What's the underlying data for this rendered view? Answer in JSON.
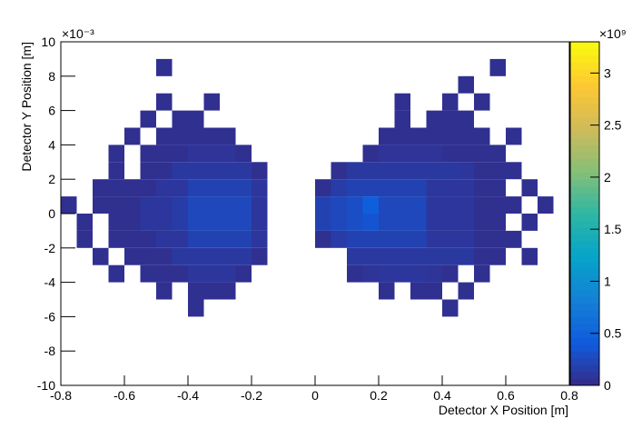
{
  "chart_data": {
    "type": "heatmap",
    "x_label": "Detector X Position [m]",
    "y_label": "Detector Y Position [m]",
    "y_multiplier": "×10⁻³",
    "z_multiplier": "×10⁹",
    "xlim": [
      -0.8,
      0.8
    ],
    "xticks": [
      -0.8,
      -0.6,
      -0.4,
      -0.2,
      0,
      0.2,
      0.4,
      0.6,
      0.8
    ],
    "ylim": [
      -10,
      10
    ],
    "yticks": [
      -10,
      -8,
      -6,
      -4,
      -2,
      0,
      2,
      4,
      6,
      8,
      10
    ],
    "zlim": [
      0,
      3.3
    ],
    "zticks": [
      0,
      0.5,
      1,
      1.5,
      2,
      2.5,
      3
    ],
    "colormap": [
      "#352a87",
      "#0f5cdd",
      "#1481d6",
      "#06a4ca",
      "#2eb7a4",
      "#87bf77",
      "#d1bb59",
      "#fec832",
      "#f9fb0e"
    ],
    "xbins": [
      -0.8,
      -0.75,
      -0.7,
      -0.65,
      -0.6,
      -0.55,
      -0.5,
      -0.45,
      -0.4,
      -0.35,
      -0.3,
      -0.25,
      -0.2,
      -0.15,
      -0.1,
      -0.05,
      0,
      0.05,
      0.1,
      0.15,
      0.2,
      0.25,
      0.3,
      0.35,
      0.4,
      0.45,
      0.5,
      0.55,
      0.6,
      0.65,
      0.7,
      0.75,
      0.8
    ],
    "ybins": [
      -10,
      -9,
      -8,
      -7,
      -6,
      -5,
      -4,
      -3,
      -2,
      -1,
      0,
      1,
      2,
      3,
      4,
      5,
      6,
      7,
      8,
      9,
      10
    ],
    "z": [
      [
        null,
        null,
        null,
        null,
        null,
        null,
        null,
        null,
        null,
        null,
        null,
        null,
        null,
        null,
        null,
        null,
        null,
        null,
        null,
        null,
        null,
        null,
        null,
        null,
        null,
        null,
        null,
        null,
        null,
        null,
        null,
        null
      ],
      [
        null,
        null,
        null,
        null,
        null,
        null,
        null,
        null,
        null,
        null,
        null,
        null,
        null,
        null,
        null,
        null,
        null,
        null,
        null,
        null,
        null,
        null,
        null,
        null,
        null,
        null,
        null,
        null,
        null,
        null,
        null,
        null
      ],
      [
        null,
        null,
        null,
        null,
        null,
        null,
        null,
        null,
        null,
        null,
        null,
        null,
        null,
        null,
        null,
        null,
        null,
        null,
        null,
        null,
        null,
        null,
        null,
        null,
        null,
        null,
        null,
        null,
        null,
        null,
        null,
        null
      ],
      [
        null,
        null,
        null,
        null,
        null,
        null,
        null,
        null,
        null,
        null,
        null,
        null,
        null,
        null,
        null,
        null,
        null,
        null,
        null,
        null,
        null,
        null,
        null,
        null,
        null,
        null,
        null,
        null,
        null,
        null,
        null,
        null
      ],
      [
        null,
        null,
        null,
        null,
        null,
        null,
        null,
        null,
        0.05,
        null,
        null,
        null,
        null,
        null,
        null,
        null,
        null,
        null,
        null,
        null,
        null,
        null,
        null,
        null,
        0.05,
        null,
        null,
        null,
        null,
        null,
        null,
        null
      ],
      [
        null,
        null,
        null,
        null,
        null,
        null,
        0.05,
        null,
        0.05,
        0.05,
        0.05,
        null,
        null,
        null,
        null,
        null,
        null,
        null,
        null,
        null,
        0.05,
        null,
        0.05,
        0.05,
        null,
        0.05,
        null,
        null,
        null,
        null,
        null,
        null
      ],
      [
        null,
        null,
        null,
        0.05,
        null,
        0.05,
        0.05,
        0.05,
        0.1,
        0.1,
        0.1,
        0.05,
        null,
        null,
        null,
        null,
        null,
        null,
        0.05,
        0.08,
        0.1,
        0.1,
        0.1,
        0.08,
        0.05,
        null,
        0.05,
        null,
        null,
        null,
        null,
        null
      ],
      [
        null,
        null,
        0.05,
        null,
        0.05,
        0.05,
        0.05,
        0.12,
        0.12,
        0.12,
        0.12,
        0.12,
        0.05,
        null,
        null,
        null,
        null,
        null,
        0.12,
        0.12,
        0.12,
        0.12,
        0.12,
        0.12,
        0.12,
        0.12,
        0.05,
        0.05,
        null,
        0.05,
        null,
        null
      ],
      [
        null,
        0.05,
        null,
        0.05,
        0.05,
        0.05,
        0.1,
        0.1,
        0.2,
        0.2,
        0.2,
        0.2,
        0.1,
        null,
        null,
        null,
        0.05,
        0.15,
        0.2,
        0.2,
        0.2,
        0.2,
        0.2,
        0.1,
        0.1,
        0.1,
        0.05,
        0.05,
        0.05,
        null,
        null,
        null
      ],
      [
        null,
        0.05,
        null,
        0.05,
        0.05,
        0.1,
        0.1,
        0.15,
        0.25,
        0.25,
        0.25,
        0.25,
        0.1,
        null,
        null,
        null,
        0.2,
        0.25,
        0.3,
        0.35,
        0.25,
        0.25,
        0.25,
        0.1,
        0.1,
        0.1,
        0.05,
        0.05,
        null,
        0.05,
        null,
        null
      ],
      [
        0.05,
        null,
        0.05,
        0.05,
        0.05,
        0.1,
        0.1,
        0.15,
        0.25,
        0.25,
        0.25,
        0.25,
        0.1,
        null,
        null,
        null,
        0.2,
        0.25,
        0.3,
        0.45,
        0.25,
        0.25,
        0.25,
        0.1,
        0.1,
        0.1,
        0.05,
        0.05,
        0.05,
        null,
        0.05,
        null
      ],
      [
        null,
        null,
        0.05,
        0.05,
        0.05,
        0.05,
        0.1,
        0.1,
        0.2,
        0.2,
        0.2,
        0.2,
        0.1,
        null,
        null,
        null,
        0.05,
        0.15,
        0.2,
        0.2,
        0.2,
        0.2,
        0.2,
        0.1,
        0.1,
        0.1,
        0.05,
        0.05,
        null,
        0.05,
        null,
        null
      ],
      [
        null,
        null,
        null,
        0.05,
        null,
        0.05,
        0.05,
        0.12,
        0.12,
        0.12,
        0.12,
        0.12,
        0.05,
        null,
        null,
        null,
        null,
        0.05,
        0.12,
        0.12,
        0.12,
        0.12,
        0.12,
        0.12,
        0.12,
        0.1,
        0.05,
        0.05,
        0.05,
        null,
        null,
        null
      ],
      [
        null,
        null,
        null,
        0.05,
        null,
        0.05,
        0.05,
        0.05,
        0.08,
        0.08,
        0.08,
        0.05,
        null,
        null,
        null,
        null,
        null,
        null,
        null,
        0.05,
        0.08,
        0.08,
        0.08,
        0.08,
        0.05,
        0.05,
        0.05,
        0.05,
        null,
        null,
        null,
        null
      ],
      [
        null,
        null,
        null,
        null,
        0.05,
        null,
        0.05,
        0.05,
        0.05,
        0.05,
        0.05,
        null,
        null,
        null,
        null,
        null,
        null,
        null,
        null,
        null,
        0.05,
        0.05,
        0.05,
        0.05,
        0.05,
        0.05,
        0.05,
        null,
        0.05,
        null,
        null,
        null
      ],
      [
        null,
        null,
        null,
        null,
        null,
        0.05,
        null,
        0.05,
        0.05,
        null,
        null,
        null,
        null,
        null,
        null,
        null,
        null,
        null,
        null,
        null,
        null,
        0.05,
        null,
        0.05,
        0.05,
        0.05,
        null,
        null,
        null,
        null,
        null,
        null
      ],
      [
        null,
        null,
        null,
        null,
        null,
        null,
        0.05,
        null,
        null,
        0.05,
        null,
        null,
        null,
        null,
        null,
        null,
        null,
        null,
        null,
        null,
        null,
        0.05,
        null,
        null,
        0.05,
        null,
        0.05,
        null,
        null,
        null,
        null,
        null
      ],
      [
        null,
        null,
        null,
        null,
        null,
        null,
        null,
        null,
        null,
        null,
        null,
        null,
        null,
        null,
        null,
        null,
        null,
        null,
        null,
        null,
        null,
        null,
        null,
        null,
        null,
        0.05,
        null,
        null,
        null,
        null,
        null,
        null
      ],
      [
        null,
        null,
        null,
        null,
        null,
        null,
        0.05,
        null,
        null,
        null,
        null,
        null,
        null,
        null,
        null,
        null,
        null,
        null,
        null,
        null,
        null,
        null,
        null,
        null,
        null,
        null,
        null,
        0.05,
        null,
        null,
        null,
        null
      ],
      [
        null,
        null,
        null,
        null,
        null,
        null,
        null,
        null,
        null,
        null,
        null,
        null,
        null,
        null,
        null,
        null,
        null,
        null,
        null,
        null,
        null,
        null,
        null,
        null,
        null,
        null,
        null,
        null,
        null,
        null,
        null,
        null
      ]
    ]
  }
}
